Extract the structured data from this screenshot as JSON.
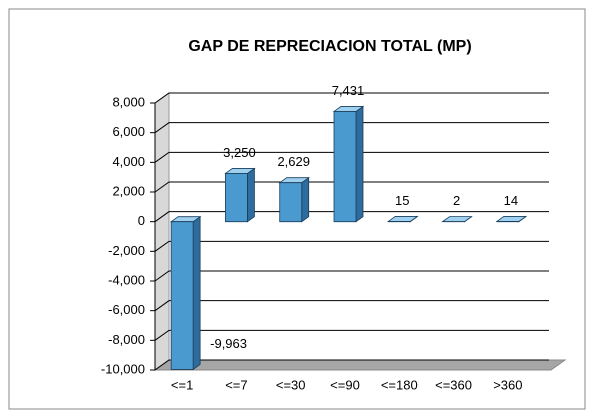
{
  "chart_data": {
    "type": "bar3d",
    "title": "GAP DE REPRECIACION TOTAL (MP)",
    "categories": [
      "<=1",
      "<=7",
      "<=30",
      "<=90",
      "<=180",
      "<=360",
      ">360"
    ],
    "values": [
      -9963,
      3250,
      2629,
      7431,
      15,
      2,
      14
    ],
    "value_labels": [
      "-9,963",
      "3,250",
      "2,629",
      "7,431",
      "15",
      "2",
      "14"
    ],
    "color": "#4a9ad0",
    "ylim": [
      -10000,
      8000
    ],
    "yticks": [
      {
        "value": -10000,
        "label": "-10,000"
      },
      {
        "value": -8000,
        "label": "-8,000"
      },
      {
        "value": -6000,
        "label": "-6,000"
      },
      {
        "value": -4000,
        "label": "-4,000"
      },
      {
        "value": -2000,
        "label": "-2,000"
      },
      0,
      {
        "value": 2000,
        "label": "2,000"
      },
      {
        "value": 4000,
        "label": "4,000"
      },
      {
        "value": 6000,
        "label": "6,000"
      },
      {
        "value": 8000,
        "label": "8,000"
      }
    ],
    "grid": true
  }
}
